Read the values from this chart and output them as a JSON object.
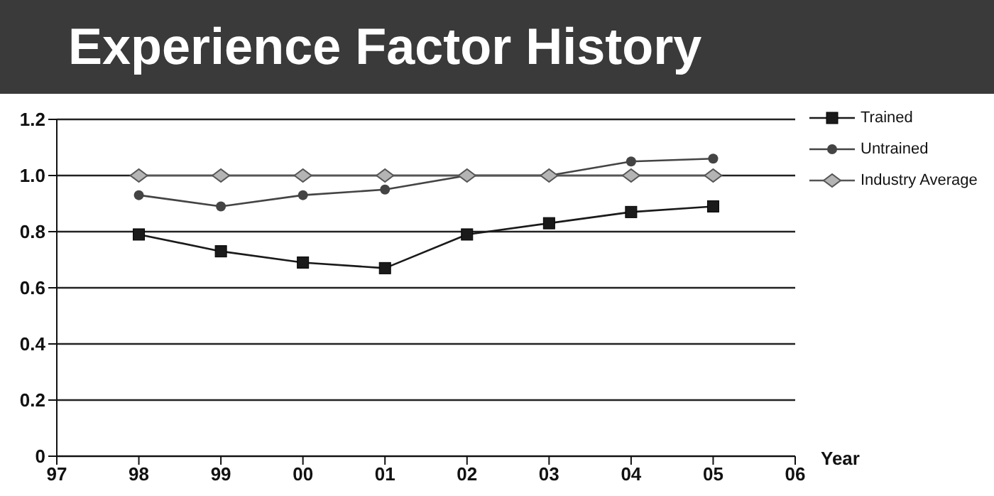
{
  "chart_data": {
    "type": "line",
    "title": "Experience Factor History",
    "xlabel": "Year",
    "x": [
      1998,
      1999,
      2000,
      2001,
      2002,
      2003,
      2004,
      2005
    ],
    "series": [
      {
        "name": "Trained",
        "color": "#1a1a1a",
        "marker": "square",
        "values": [
          0.79,
          0.73,
          0.69,
          0.67,
          0.79,
          0.83,
          0.87,
          0.89
        ]
      },
      {
        "name": "Untrained",
        "color": "#444444",
        "marker": "circle",
        "values": [
          0.93,
          0.89,
          0.93,
          0.95,
          1.0,
          1.0,
          1.05,
          1.06
        ]
      },
      {
        "name": "Industry Average",
        "color": "#b4b4b4",
        "marker": "diamond",
        "values": [
          1.0,
          1.0,
          1.0,
          1.0,
          1.0,
          1.0,
          1.0,
          1.0
        ]
      }
    ],
    "xlim": [
      1997,
      2006
    ],
    "xticks": [
      {
        "value": 1997,
        "label": "97"
      },
      {
        "value": 1998,
        "label": "98"
      },
      {
        "value": 1999,
        "label": "99"
      },
      {
        "value": 2000,
        "label": "00"
      },
      {
        "value": 2001,
        "label": "01"
      },
      {
        "value": 2002,
        "label": "02"
      },
      {
        "value": 2003,
        "label": "03"
      },
      {
        "value": 2004,
        "label": "04"
      },
      {
        "value": 2005,
        "label": "05"
      },
      {
        "value": 2006,
        "label": "06"
      }
    ],
    "ylim": [
      0,
      1.2
    ],
    "yticks": [
      {
        "value": 0,
        "label": "0"
      },
      {
        "value": 0.2,
        "label": "0.2"
      },
      {
        "value": 0.4,
        "label": "0.4"
      },
      {
        "value": 0.6,
        "label": "0.6"
      },
      {
        "value": 0.8,
        "label": "0.8"
      },
      {
        "value": 1.0,
        "label": "1.0"
      },
      {
        "value": 1.2,
        "label": "1.2"
      }
    ],
    "grid": "y",
    "legend": "right",
    "line_style": "solid"
  }
}
